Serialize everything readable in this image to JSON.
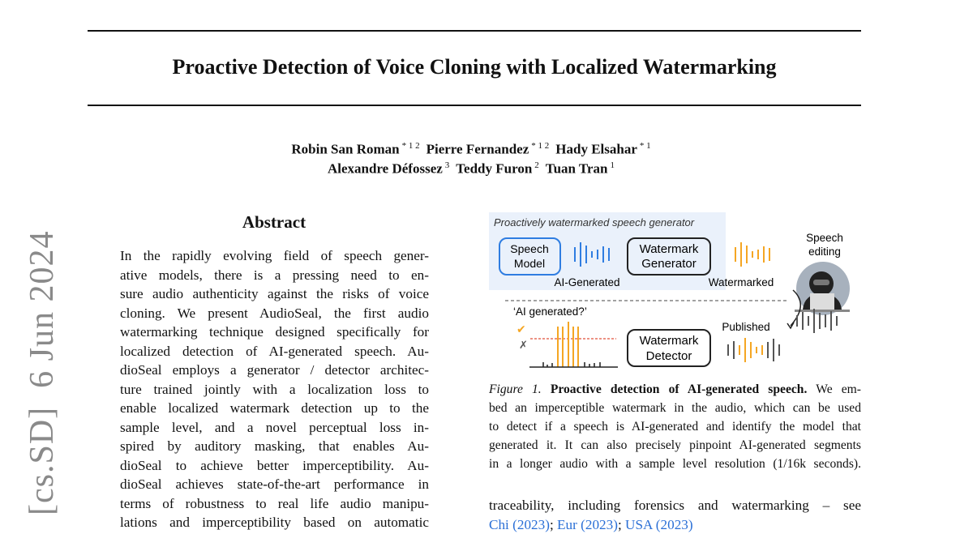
{
  "arxiv_stamp": "[cs.SD]  6 Jun 2024",
  "title": "Proactive Detection of Voice Cloning with Localized Watermarking",
  "authors": {
    "line1": [
      {
        "name": "Robin San Roman",
        "aff": "* 1 2"
      },
      {
        "name": "Pierre Fernandez",
        "aff": "* 1 2"
      },
      {
        "name": "Hady Elsahar",
        "aff": "* 1"
      }
    ],
    "line2": [
      {
        "name": "Alexandre Défossez",
        "aff": "3"
      },
      {
        "name": "Teddy Furon",
        "aff": "2"
      },
      {
        "name": "Tuan Tran",
        "aff": "1"
      }
    ]
  },
  "abstract": {
    "heading": "Abstract",
    "lines": [
      "In the rapidly evolving field of speech gener-",
      "ative models, there is a pressing need to en-",
      "sure audio authenticity against the risks of voice",
      "cloning. We present AudioSeal, the first audio",
      "watermarking technique designed specifically for",
      "localized detection of AI-generated speech. Au-",
      "dioSeal employs a generator / detector architec-",
      "ture trained jointly with a localization loss to",
      "enable localized watermark detection up to the",
      "sample level, and a novel perceptual loss in-",
      "spired by auditory masking, that enables Au-",
      "dioSeal to achieve better imperceptibility. Au-",
      "dioSeal achieves state-of-the-art performance in",
      "terms of robustness to real life audio manipu-",
      "lations and imperceptibility based on automatic"
    ]
  },
  "figure": {
    "panel_title": "Proactively watermarked speech generator",
    "speech_model": [
      "Speech",
      "Model"
    ],
    "wm_generator": [
      "Watermark",
      "Generator"
    ],
    "wm_detector": [
      "Watermark",
      "Detector"
    ],
    "ai_generated": "AI-Generated",
    "watermarked": "Watermarked",
    "speech_editing": [
      "Speech",
      "editing"
    ],
    "published": "Published",
    "question": "‘AI generated?’",
    "check": "✔",
    "cross": "✗",
    "colors": {
      "blue": "#2f7de1",
      "orange": "#f5a623",
      "panel": "#eaf1fb",
      "threshold": "#e0523a"
    },
    "caption_label": "Figure 1.",
    "caption_bold": "Proactive detection of AI-generated speech.",
    "caption_lines": [
      "We em-",
      "bed an imperceptible watermark in the audio, which can be used",
      "to detect if a speech is AI-generated and identify the model that",
      "generated it. It can also precisely pinpoint AI-generated segments",
      "in a longer audio with a sample level resolution (1/16k seconds)."
    ]
  },
  "body": {
    "line1": "traceability, including forensics and watermarking – see",
    "refs": [
      "Chi (2023)",
      "Eur (2023)",
      "USA (2023)"
    ]
  }
}
